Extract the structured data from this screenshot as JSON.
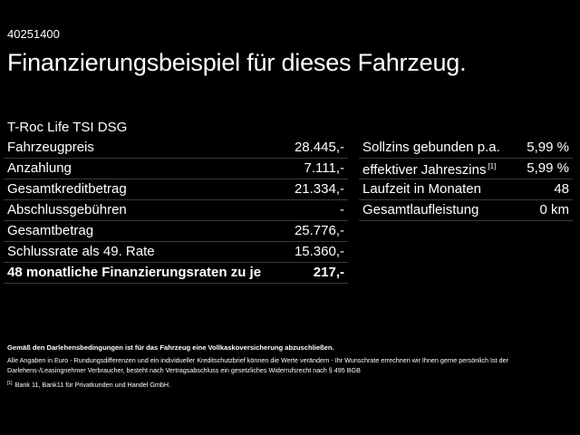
{
  "vehicle_id": "40251400",
  "headline": "Finanzierungsbeispiel für dieses Fahrzeug.",
  "model": "T-Roc Life TSI DSG",
  "left_table": [
    {
      "label": "Fahrzeugpreis",
      "value": "28.445,-"
    },
    {
      "label": "Anzahlung",
      "value": "7.111,-"
    },
    {
      "label": "Gesamtkreditbetrag",
      "value": "21.334,-"
    },
    {
      "label": "Abschlussgebühren",
      "value": "-"
    },
    {
      "label": "Gesamtbetrag",
      "value": "25.776,-"
    },
    {
      "label": "Schlussrate als 49. Rate",
      "value": "15.360,-"
    },
    {
      "label": "48 monatliche Finanzierungsraten zu je",
      "value": "217,-"
    }
  ],
  "right_table": [
    {
      "label": "Sollzins gebunden p.a.",
      "value": "5,99 %"
    },
    {
      "label": "effektiver Jahreszins",
      "footnote": "[1]",
      "value": "5,99 %"
    },
    {
      "label": "Laufzeit in Monaten",
      "value": "48"
    },
    {
      "label": "Gesamtlaufleistung",
      "value": "0 km"
    }
  ],
  "footer": {
    "insurance_note": "Gemäß den Darlehensbedingungen ist für das Fahrzeug eine Vollkaskoversicherung abzuschließen.",
    "disclaimer": "Alle Angaben in Euro - Rundungsdifferenzen und ein individueller Kreditschutzbrief können die Werte verändern - Ihr Wunschrate errechnen wir Ihnen gerne persönlich Ist der Darlehens-/Leasingnehmer Verbraucher, besteht nach Vertragsabschluss ein gesetzliches Widerrufsrecht nach § 495 BGB",
    "footnote_marker": "[1]",
    "footnote_text": "Bank 11, Bank11 für Privatkunden und Handel GmbH."
  }
}
